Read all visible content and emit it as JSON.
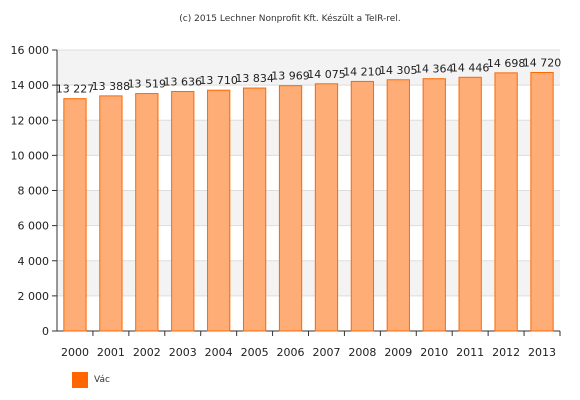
{
  "credit": "(c) 2015 Lechner Nonprofit Kft. Készült a TeIR-rel.",
  "chart_data": {
    "type": "bar",
    "categories": [
      "2000",
      "2001",
      "2002",
      "2003",
      "2004",
      "2005",
      "2006",
      "2007",
      "2008",
      "2009",
      "2010",
      "2011",
      "2012",
      "2013"
    ],
    "series": [
      {
        "name": "Vác",
        "values": [
          13227,
          13388,
          13519,
          13636,
          13710,
          13834,
          13969,
          14075,
          14210,
          14305,
          14364,
          14446,
          14698,
          14720
        ],
        "labels": [
          "13 227",
          "13 388",
          "13 519",
          "13 636",
          "13 710",
          "13 834",
          "13 969",
          "14 075",
          "14 210",
          "14 305",
          "14 364",
          "14 446",
          "14 698",
          "14 720"
        ]
      }
    ],
    "ylim": [
      0,
      16000
    ],
    "yticks": [
      0,
      2000,
      4000,
      6000,
      8000,
      10000,
      12000,
      14000,
      16000
    ],
    "ytick_labels": [
      "0",
      "2 000",
      "4 000",
      "6 000",
      "8 000",
      "10 000",
      "12 000",
      "14 000",
      "16 000"
    ],
    "grid": true,
    "legend_position": "bottom-left",
    "colors": {
      "bar_fill": "#ffad77",
      "bar_stroke": "#ff6600",
      "legend": "#ff6600",
      "band": "#f3f3f3",
      "grid": "#dddddd"
    }
  }
}
